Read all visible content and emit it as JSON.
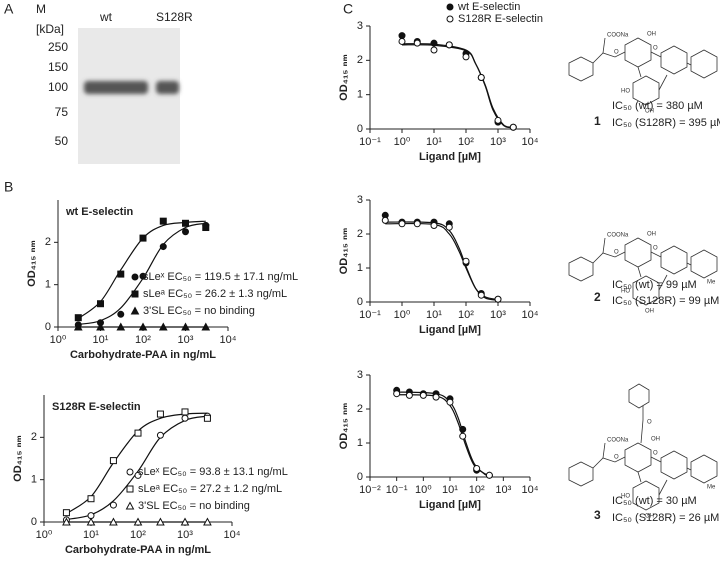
{
  "panels": [
    "A",
    "B",
    "C"
  ],
  "blot": {
    "lanes": [
      "M",
      "wt",
      "S128R"
    ],
    "unit": "[kDa]",
    "markers": [
      "250",
      "150",
      "100",
      "75",
      "50"
    ]
  },
  "structures": [
    {
      "number": "1",
      "ic50": [
        "IC₅₀ (wt) = 380 µM",
        "IC₅₀ (S128R) = 395 µM"
      ],
      "labels": [
        "COONa",
        "O",
        "OH",
        "HO",
        "OH",
        "O"
      ]
    },
    {
      "number": "2",
      "ic50": [
        "IC₅₀ (wt) = 99 µM",
        "IC₅₀ (S128R) = 99 µM"
      ],
      "labels": [
        "COONa",
        "O",
        "OH",
        "HO",
        "OH",
        "O",
        "Me"
      ]
    },
    {
      "number": "3",
      "ic50": [
        "IC₅₀ (wt) = 30 µM",
        "IC₅₀ (S128R) = 26 µM"
      ],
      "labels": [
        "COONa",
        "O",
        "OH",
        "HO",
        "OH",
        "O",
        "Me",
        "O"
      ]
    }
  ],
  "chart_data": [
    {
      "type": "scatter",
      "title": "wt E-selectin",
      "xlabel": "Carbohydrate-PAA in ng/mL",
      "ylabel": "OD₄₁₅ ₙₘ",
      "xscale": "log",
      "xlim": [
        1,
        10000
      ],
      "ylim": [
        0,
        3
      ],
      "legend": "lower right",
      "xticks": [
        {
          "value": 1,
          "label": "10⁰"
        },
        {
          "value": 10,
          "label": "10¹"
        },
        {
          "value": 100,
          "label": "10²"
        },
        {
          "value": 1000,
          "label": "10³"
        },
        {
          "value": 10000,
          "label": "10⁴"
        }
      ],
      "yticks": [
        0,
        1,
        2
      ],
      "series": [
        {
          "name": "sLeˣ EC₅₀ = 119.5 ± 17.1 ng/mL",
          "color": "#111111",
          "marker": "circle",
          "filled": true,
          "x": [
            3,
            10,
            30,
            100,
            300,
            1000,
            3000
          ],
          "values": [
            0.05,
            0.1,
            0.3,
            1.2,
            1.9,
            2.25,
            2.4
          ],
          "fit_x": [
            3,
            10,
            30,
            100,
            300,
            1000,
            3000
          ],
          "fit_values": [
            0.06,
            0.15,
            0.45,
            1.15,
            1.95,
            2.35,
            2.45
          ]
        },
        {
          "name": "sLeᵃ EC₅₀ = 26.2 ± 1.3 ng/mL",
          "color": "#111111",
          "marker": "square",
          "filled": true,
          "x": [
            3,
            10,
            30,
            100,
            300,
            1000,
            3000
          ],
          "values": [
            0.22,
            0.55,
            1.25,
            2.1,
            2.5,
            2.45,
            2.35
          ],
          "fit_x": [
            3,
            10,
            30,
            100,
            300,
            1000,
            3000
          ],
          "fit_values": [
            0.2,
            0.6,
            1.35,
            2.1,
            2.4,
            2.47,
            2.5
          ]
        },
        {
          "name": "3'SL EC₅₀ = no binding",
          "color": "#111111",
          "marker": "triangle",
          "filled": true,
          "x": [
            3,
            10,
            30,
            100,
            300,
            1000,
            3000
          ],
          "values": [
            0,
            0,
            0,
            0,
            0,
            0,
            0
          ],
          "fit_x": [
            3,
            3000
          ],
          "fit_values": [
            0,
            0
          ]
        }
      ]
    },
    {
      "type": "scatter",
      "title": "S128R E-selectin",
      "xlabel": "Carbohydrate-PAA in ng/mL",
      "ylabel": "OD₄₁₅ ₙₘ",
      "xscale": "log",
      "xlim": [
        1,
        10000
      ],
      "ylim": [
        0,
        3
      ],
      "legend": "lower right",
      "xticks": [
        {
          "value": 1,
          "label": "10⁰"
        },
        {
          "value": 10,
          "label": "10¹"
        },
        {
          "value": 100,
          "label": "10²"
        },
        {
          "value": 1000,
          "label": "10³"
        },
        {
          "value": 10000,
          "label": "10⁴"
        }
      ],
      "yticks": [
        0,
        1,
        2
      ],
      "series": [
        {
          "name": "sLeˣ EC₅₀ = 93.8 ± 13.1 ng/mL",
          "color": "#111111",
          "marker": "circle",
          "filled": false,
          "x": [
            3,
            10,
            30,
            100,
            300,
            1000,
            3000
          ],
          "values": [
            0.05,
            0.15,
            0.4,
            1.1,
            2.05,
            2.45,
            2.5
          ],
          "fit_x": [
            3,
            10,
            30,
            100,
            300,
            1000,
            3000
          ],
          "fit_values": [
            0.06,
            0.17,
            0.5,
            1.2,
            2.0,
            2.4,
            2.5
          ]
        },
        {
          "name": "sLeᵃ EC₅₀ = 27.2 ± 1.2 ng/mL",
          "color": "#111111",
          "marker": "square",
          "filled": false,
          "x": [
            3,
            10,
            30,
            100,
            300,
            1000,
            3000
          ],
          "values": [
            0.22,
            0.55,
            1.45,
            2.1,
            2.55,
            2.6,
            2.45
          ],
          "fit_x": [
            3,
            10,
            30,
            100,
            300,
            1000,
            3000
          ],
          "fit_values": [
            0.2,
            0.6,
            1.4,
            2.15,
            2.45,
            2.55,
            2.57
          ]
        },
        {
          "name": "3'SL EC₅₀ = no binding",
          "color": "#111111",
          "marker": "triangle",
          "filled": false,
          "x": [
            3,
            10,
            30,
            100,
            300,
            1000,
            3000
          ],
          "values": [
            0,
            0,
            0,
            0,
            0,
            0,
            0
          ],
          "fit_x": [
            3,
            3000
          ],
          "fit_values": [
            0,
            0
          ]
        }
      ]
    },
    {
      "type": "scatter",
      "xlabel": "Ligand [µM]",
      "ylabel": "OD₄₁₅ ₙₘ",
      "xscale": "log",
      "xlim": [
        0.1,
        10000
      ],
      "ylim": [
        0,
        3
      ],
      "legend": "top",
      "xticks": [
        {
          "value": 0.1,
          "label": "10⁻¹"
        },
        {
          "value": 1,
          "label": "10⁰"
        },
        {
          "value": 10,
          "label": "10¹"
        },
        {
          "value": 100,
          "label": "10²"
        },
        {
          "value": 1000,
          "label": "10³"
        },
        {
          "value": 10000,
          "label": "10⁴"
        }
      ],
      "yticks": [
        0,
        1,
        2,
        3
      ],
      "series": [
        {
          "name": "wt E-selectin",
          "color": "#111111",
          "marker": "circle",
          "filled": true,
          "x": [
            1,
            3,
            10,
            30,
            100,
            300,
            1000,
            3000
          ],
          "values": [
            2.72,
            2.55,
            2.5,
            2.45,
            2.2,
            1.5,
            0.2,
            0.05
          ],
          "fit_x": [
            1,
            10,
            100,
            200,
            400,
            700,
            1500,
            3000
          ],
          "fit_values": [
            2.48,
            2.47,
            2.3,
            1.9,
            1.25,
            0.55,
            0.1,
            0.04
          ]
        },
        {
          "name": "S128R E-selectin",
          "color": "#111111",
          "marker": "circle",
          "filled": false,
          "x": [
            1,
            3,
            10,
            30,
            100,
            300,
            1000,
            3000
          ],
          "values": [
            2.55,
            2.5,
            2.3,
            2.45,
            2.1,
            1.5,
            0.25,
            0.05
          ],
          "fit_x": [
            1,
            10,
            100,
            200,
            400,
            700,
            1500,
            3000
          ],
          "fit_values": [
            2.45,
            2.44,
            2.28,
            1.9,
            1.28,
            0.6,
            0.12,
            0.05
          ]
        }
      ]
    },
    {
      "type": "scatter",
      "xlabel": "Ligand [µM]",
      "ylabel": "OD₄₁₅ ₙₘ",
      "xscale": "log",
      "xlim": [
        0.1,
        10000
      ],
      "ylim": [
        0,
        3
      ],
      "xticks": [
        {
          "value": 0.1,
          "label": "10⁻¹"
        },
        {
          "value": 1,
          "label": "10⁰"
        },
        {
          "value": 10,
          "label": "10¹"
        },
        {
          "value": 100,
          "label": "10²"
        },
        {
          "value": 1000,
          "label": "10³"
        },
        {
          "value": 10000,
          "label": "10⁴"
        }
      ],
      "yticks": [
        0,
        1,
        2,
        3
      ],
      "series": [
        {
          "color": "#111111",
          "marker": "circle",
          "filled": true,
          "x": [
            0.3,
            1,
            3,
            10,
            30,
            100,
            300,
            1000
          ],
          "values": [
            2.55,
            2.35,
            2.35,
            2.35,
            2.3,
            1.15,
            0.25,
            0.08
          ],
          "fit_x": [
            0.3,
            10,
            30,
            60,
            100,
            200,
            400,
            1000
          ],
          "fit_values": [
            2.35,
            2.33,
            2.1,
            1.6,
            1.05,
            0.4,
            0.12,
            0.05
          ]
        },
        {
          "color": "#111111",
          "marker": "circle",
          "filled": false,
          "x": [
            0.3,
            1,
            3,
            10,
            30,
            100,
            300,
            1000
          ],
          "values": [
            2.4,
            2.3,
            2.3,
            2.25,
            2.2,
            1.2,
            0.2,
            0.08
          ],
          "fit_x": [
            0.3,
            10,
            30,
            60,
            100,
            200,
            400,
            1000
          ],
          "fit_values": [
            2.3,
            2.28,
            2.0,
            1.5,
            1.0,
            0.4,
            0.15,
            0.07
          ]
        }
      ]
    },
    {
      "type": "scatter",
      "xlabel": "Ligand [µM]",
      "ylabel": "OD₄₁₅ ₙₘ",
      "xscale": "log",
      "xlim": [
        0.01,
        10000
      ],
      "ylim": [
        0,
        3
      ],
      "xticks": [
        {
          "value": 0.01,
          "label": "10⁻²"
        },
        {
          "value": 0.1,
          "label": "10⁻¹"
        },
        {
          "value": 1,
          "label": "10⁰"
        },
        {
          "value": 10,
          "label": "10¹"
        },
        {
          "value": 100,
          "label": "10²"
        },
        {
          "value": 1000,
          "label": "10³"
        },
        {
          "value": 10000,
          "label": "10⁴"
        }
      ],
      "yticks": [
        0,
        1,
        2,
        3
      ],
      "series": [
        {
          "color": "#111111",
          "marker": "circle",
          "filled": true,
          "x": [
            0.1,
            0.3,
            1,
            3,
            10,
            30,
            100,
            300
          ],
          "values": [
            2.55,
            2.5,
            2.45,
            2.45,
            2.3,
            1.4,
            0.2,
            0.05
          ],
          "fit_x": [
            0.1,
            3,
            10,
            20,
            40,
            80,
            200,
            300
          ],
          "fit_values": [
            2.5,
            2.45,
            2.2,
            1.75,
            1.0,
            0.4,
            0.08,
            0.05
          ]
        },
        {
          "color": "#111111",
          "marker": "circle",
          "filled": false,
          "x": [
            0.1,
            0.3,
            1,
            3,
            10,
            30,
            100,
            300
          ],
          "values": [
            2.45,
            2.4,
            2.4,
            2.35,
            2.2,
            1.2,
            0.25,
            0.05
          ],
          "fit_x": [
            0.1,
            3,
            10,
            20,
            40,
            80,
            200,
            300
          ],
          "fit_values": [
            2.42,
            2.38,
            2.1,
            1.6,
            0.9,
            0.35,
            0.1,
            0.06
          ]
        }
      ]
    }
  ]
}
